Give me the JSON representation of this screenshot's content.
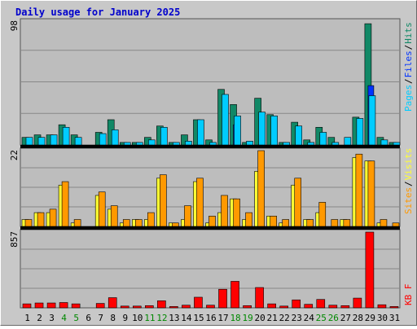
{
  "chart_data": [
    {
      "type": "bar",
      "title": "Daily usage for January 2025",
      "max_label": "98",
      "ylim": [
        0,
        98
      ],
      "grid": true,
      "legend": [
        "Pages",
        "Files",
        "Hits"
      ],
      "categories": [
        "1",
        "2",
        "3",
        "4",
        "5",
        "6",
        "7",
        "8",
        "9",
        "10",
        "11",
        "12",
        "13",
        "14",
        "15",
        "16",
        "17",
        "18",
        "19",
        "20",
        "21",
        "22",
        "23",
        "24",
        "25",
        "26",
        "27",
        "28",
        "29",
        "30",
        "31"
      ],
      "weekend_days": [
        "4",
        "5",
        "11",
        "12",
        "18",
        "19",
        "25",
        "26"
      ],
      "series": [
        {
          "name": "Hits",
          "values": [
            6,
            8,
            8,
            16,
            8,
            0,
            10,
            20,
            2,
            2,
            6,
            15,
            2,
            8,
            20,
            4,
            44,
            32,
            2,
            37,
            24,
            2,
            18,
            4,
            14,
            6,
            0,
            22,
            96,
            6,
            2
          ]
        },
        {
          "name": "Files",
          "values": [
            0,
            0,
            0,
            0,
            0,
            0,
            0,
            0,
            0,
            0,
            0,
            0,
            0,
            0,
            0,
            0,
            0,
            16,
            0,
            0,
            0,
            0,
            0,
            0,
            0,
            0,
            0,
            0,
            47,
            0,
            0
          ]
        },
        {
          "name": "Pages",
          "values": [
            6,
            6,
            8,
            14,
            6,
            0,
            9,
            12,
            2,
            2,
            4,
            14,
            2,
            3,
            20,
            2,
            40,
            23,
            3,
            26,
            23,
            2,
            15,
            2,
            10,
            2,
            6,
            21,
            39,
            4,
            2
          ]
        }
      ]
    },
    {
      "type": "bar",
      "max_label": "22",
      "ylim": [
        0,
        22
      ],
      "grid": true,
      "legend": [
        "Sites",
        "Visits"
      ],
      "categories": [
        "1",
        "2",
        "3",
        "4",
        "5",
        "6",
        "7",
        "8",
        "9",
        "10",
        "11",
        "12",
        "13",
        "14",
        "15",
        "16",
        "17",
        "18",
        "19",
        "20",
        "21",
        "22",
        "23",
        "24",
        "25",
        "26",
        "27",
        "28",
        "29",
        "30",
        "31"
      ],
      "series": [
        {
          "name": "Visits",
          "values": [
            2,
            4,
            4,
            12,
            1,
            0,
            9,
            5,
            1,
            2,
            2,
            14,
            1,
            2,
            13,
            1,
            4,
            8,
            2,
            16,
            3,
            1,
            12,
            2,
            4,
            0,
            2,
            20,
            19,
            1,
            0
          ]
        },
        {
          "name": "Sites",
          "values": [
            2,
            4,
            5,
            13,
            2,
            0,
            10,
            6,
            2,
            2,
            4,
            15,
            1,
            6,
            14,
            3,
            9,
            8,
            4,
            22,
            3,
            2,
            14,
            2,
            7,
            2,
            2,
            21,
            19,
            2,
            1
          ]
        }
      ]
    },
    {
      "type": "bar",
      "max_label": "857",
      "ylim": [
        0,
        857
      ],
      "grid": true,
      "legend": [
        "KB F"
      ],
      "categories": [
        "1",
        "2",
        "3",
        "4",
        "5",
        "6",
        "7",
        "8",
        "9",
        "10",
        "11",
        "12",
        "13",
        "14",
        "15",
        "16",
        "17",
        "18",
        "19",
        "20",
        "21",
        "22",
        "23",
        "24",
        "25",
        "26",
        "27",
        "28",
        "29",
        "30",
        "31"
      ],
      "series": [
        {
          "name": "KB F",
          "values": [
            45,
            55,
            55,
            60,
            45,
            0,
            50,
            115,
            20,
            20,
            25,
            80,
            15,
            30,
            120,
            30,
            210,
            300,
            25,
            230,
            45,
            20,
            90,
            40,
            95,
            30,
            25,
            110,
            857,
            35,
            15
          ]
        }
      ]
    }
  ],
  "colors": {
    "background": "#c8c8c8",
    "plot_bg": "#bdbdbd",
    "grid": "#888888",
    "title": "#0000cc",
    "hits": "#118866",
    "files": "#0033ff",
    "pages": "#00ccff",
    "visits": "#ffff33",
    "sites": "#ff9900",
    "kbytes": "#ff0000",
    "weekday_label": "#000000",
    "weekend_label": "#008800",
    "separator": "#000000"
  }
}
